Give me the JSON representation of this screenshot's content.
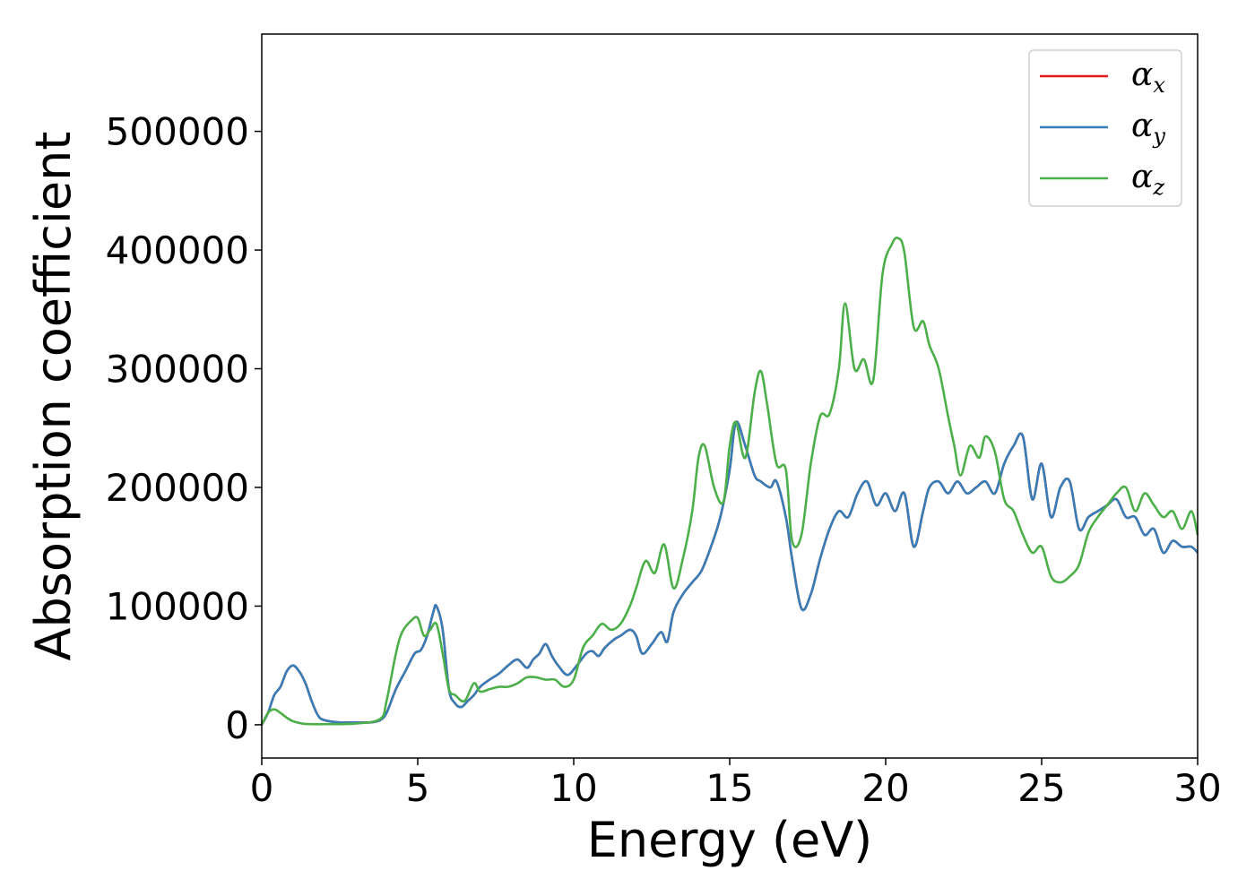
{
  "chart_data": {
    "type": "line",
    "xlabel": "Energy (eV)",
    "ylabel": "Absorption coefficient",
    "xlim": [
      0,
      30
    ],
    "ylim": [
      -28000,
      582000
    ],
    "xticks": [
      0,
      5,
      10,
      15,
      20,
      25,
      30
    ],
    "yticks": [
      0,
      100000,
      200000,
      300000,
      400000,
      500000
    ],
    "grid": false,
    "legend_position": "top-right",
    "series": [
      {
        "name": "α_x",
        "label_base": "α",
        "label_sub": "x",
        "color": "#e41a1c",
        "x": [
          0,
          0.2,
          0.4,
          0.6,
          0.8,
          1.0,
          1.2,
          1.4,
          1.6,
          1.8,
          2.0,
          2.5,
          3.0,
          3.5,
          3.8,
          4.0,
          4.3,
          4.6,
          4.9,
          5.1,
          5.3,
          5.5,
          5.6,
          5.8,
          6.0,
          6.2,
          6.4,
          6.6,
          6.8,
          7.0,
          7.3,
          7.6,
          7.9,
          8.2,
          8.5,
          8.7,
          8.9,
          9.1,
          9.3,
          9.5,
          9.8,
          10.1,
          10.4,
          10.6,
          10.8,
          11.0,
          11.3,
          11.5,
          11.8,
          12.0,
          12.2,
          12.5,
          12.8,
          13.0,
          13.2,
          13.5,
          13.8,
          14.1,
          14.4,
          14.7,
          15.0,
          15.2,
          15.5,
          15.8,
          16.0,
          16.3,
          16.5,
          16.8,
          17.0,
          17.3,
          17.6,
          17.9,
          18.2,
          18.5,
          18.8,
          19.1,
          19.4,
          19.7,
          20.0,
          20.3,
          20.6,
          20.9,
          21.2,
          21.4,
          21.7,
          22.0,
          22.3,
          22.6,
          22.9,
          23.2,
          23.5,
          23.8,
          24.1,
          24.4,
          24.7,
          25.0,
          25.3,
          25.6,
          25.9,
          26.2,
          26.5,
          26.8,
          27.1,
          27.4,
          27.7,
          28.0,
          28.3,
          28.6,
          28.9,
          29.2,
          29.5,
          29.8,
          30.0
        ],
        "y": [
          0,
          10000,
          25000,
          32000,
          45000,
          50000,
          45000,
          35000,
          20000,
          8000,
          4000,
          2000,
          2000,
          2000,
          4000,
          10000,
          30000,
          45000,
          60000,
          63000,
          75000,
          95000,
          100000,
          80000,
          30000,
          18000,
          15000,
          20000,
          25000,
          32000,
          38000,
          43000,
          50000,
          55000,
          48000,
          55000,
          60000,
          68000,
          58000,
          50000,
          42000,
          50000,
          60000,
          62000,
          58000,
          65000,
          72000,
          75000,
          80000,
          75000,
          60000,
          68000,
          78000,
          70000,
          95000,
          110000,
          120000,
          130000,
          150000,
          175000,
          215000,
          255000,
          235000,
          210000,
          205000,
          200000,
          205000,
          175000,
          140000,
          98000,
          110000,
          140000,
          165000,
          180000,
          175000,
          195000,
          205000,
          185000,
          195000,
          180000,
          195000,
          150000,
          180000,
          200000,
          205000,
          195000,
          205000,
          195000,
          200000,
          205000,
          195000,
          220000,
          235000,
          243000,
          190000,
          220000,
          175000,
          200000,
          205000,
          165000,
          175000,
          180000,
          185000,
          190000,
          175000,
          175000,
          160000,
          165000,
          145000,
          155000,
          150000,
          150000,
          145000
        ]
      },
      {
        "name": "α_y",
        "label_base": "α",
        "label_sub": "y",
        "color": "#377eb8",
        "x": [
          0,
          0.2,
          0.4,
          0.6,
          0.8,
          1.0,
          1.2,
          1.4,
          1.6,
          1.8,
          2.0,
          2.5,
          3.0,
          3.5,
          3.8,
          4.0,
          4.3,
          4.6,
          4.9,
          5.1,
          5.3,
          5.5,
          5.6,
          5.8,
          6.0,
          6.2,
          6.4,
          6.6,
          6.8,
          7.0,
          7.3,
          7.6,
          7.9,
          8.2,
          8.5,
          8.7,
          8.9,
          9.1,
          9.3,
          9.5,
          9.8,
          10.1,
          10.4,
          10.6,
          10.8,
          11.0,
          11.3,
          11.5,
          11.8,
          12.0,
          12.2,
          12.5,
          12.8,
          13.0,
          13.2,
          13.5,
          13.8,
          14.1,
          14.4,
          14.7,
          15.0,
          15.2,
          15.5,
          15.8,
          16.0,
          16.3,
          16.5,
          16.8,
          17.0,
          17.3,
          17.6,
          17.9,
          18.2,
          18.5,
          18.8,
          19.1,
          19.4,
          19.7,
          20.0,
          20.3,
          20.6,
          20.9,
          21.2,
          21.4,
          21.7,
          22.0,
          22.3,
          22.6,
          22.9,
          23.2,
          23.5,
          23.8,
          24.1,
          24.4,
          24.7,
          25.0,
          25.3,
          25.6,
          25.9,
          26.2,
          26.5,
          26.8,
          27.1,
          27.4,
          27.7,
          28.0,
          28.3,
          28.6,
          28.9,
          29.2,
          29.5,
          29.8,
          30.0
        ],
        "y": [
          0,
          10000,
          25000,
          32000,
          45000,
          50000,
          45000,
          35000,
          20000,
          8000,
          4000,
          2000,
          2000,
          2000,
          4000,
          10000,
          30000,
          45000,
          60000,
          63000,
          75000,
          95000,
          100000,
          80000,
          30000,
          18000,
          15000,
          20000,
          25000,
          32000,
          38000,
          43000,
          50000,
          55000,
          48000,
          55000,
          60000,
          68000,
          58000,
          50000,
          42000,
          50000,
          60000,
          62000,
          58000,
          65000,
          72000,
          75000,
          80000,
          75000,
          60000,
          68000,
          78000,
          70000,
          95000,
          110000,
          120000,
          130000,
          150000,
          175000,
          215000,
          255000,
          235000,
          210000,
          205000,
          200000,
          205000,
          175000,
          140000,
          98000,
          110000,
          140000,
          165000,
          180000,
          175000,
          195000,
          205000,
          185000,
          195000,
          180000,
          195000,
          150000,
          180000,
          200000,
          205000,
          195000,
          205000,
          195000,
          200000,
          205000,
          195000,
          220000,
          235000,
          243000,
          190000,
          220000,
          175000,
          200000,
          205000,
          165000,
          175000,
          180000,
          185000,
          190000,
          175000,
          175000,
          160000,
          165000,
          145000,
          155000,
          150000,
          150000,
          145000
        ]
      },
      {
        "name": "α_z",
        "label_base": "α",
        "label_sub": "z",
        "color": "#4daf4a",
        "x": [
          0,
          0.2,
          0.4,
          0.6,
          0.8,
          1.0,
          1.3,
          1.6,
          2.0,
          3.0,
          3.8,
          4.0,
          4.3,
          4.5,
          4.8,
          5.0,
          5.2,
          5.4,
          5.6,
          5.8,
          6.0,
          6.2,
          6.5,
          6.8,
          7.0,
          7.3,
          7.6,
          7.9,
          8.2,
          8.5,
          8.8,
          9.1,
          9.4,
          9.7,
          10.0,
          10.3,
          10.6,
          10.9,
          11.2,
          11.5,
          11.8,
          12.0,
          12.3,
          12.6,
          12.9,
          13.2,
          13.5,
          13.8,
          14.0,
          14.2,
          14.5,
          14.8,
          15.0,
          15.2,
          15.5,
          15.8,
          16.0,
          16.2,
          16.5,
          16.8,
          17.0,
          17.3,
          17.6,
          17.9,
          18.2,
          18.5,
          18.7,
          19.0,
          19.3,
          19.6,
          19.9,
          20.2,
          20.4,
          20.6,
          20.9,
          21.2,
          21.4,
          21.7,
          22.0,
          22.2,
          22.4,
          22.7,
          23.0,
          23.2,
          23.5,
          23.8,
          24.1,
          24.4,
          24.7,
          25.0,
          25.3,
          25.6,
          25.9,
          26.2,
          26.5,
          26.8,
          27.1,
          27.4,
          27.7,
          28.0,
          28.3,
          28.6,
          28.9,
          29.2,
          29.5,
          29.8,
          30.0
        ],
        "y": [
          0,
          10000,
          13000,
          10000,
          6000,
          3000,
          1000,
          500,
          500,
          1000,
          5000,
          20000,
          60000,
          78000,
          88000,
          90000,
          75000,
          80000,
          85000,
          60000,
          30000,
          25000,
          20000,
          35000,
          28000,
          30000,
          32000,
          32000,
          35000,
          40000,
          40000,
          38000,
          38000,
          32000,
          38000,
          65000,
          75000,
          85000,
          80000,
          85000,
          100000,
          115000,
          138000,
          128000,
          152000,
          115000,
          140000,
          180000,
          225000,
          235000,
          200000,
          188000,
          235000,
          255000,
          225000,
          280000,
          298000,
          270000,
          220000,
          215000,
          155000,
          160000,
          220000,
          260000,
          262000,
          300000,
          355000,
          300000,
          308000,
          290000,
          380000,
          405000,
          410000,
          398000,
          335000,
          340000,
          320000,
          300000,
          260000,
          235000,
          210000,
          235000,
          225000,
          243000,
          230000,
          190000,
          180000,
          160000,
          145000,
          150000,
          125000,
          120000,
          125000,
          135000,
          162000,
          175000,
          185000,
          195000,
          200000,
          180000,
          195000,
          185000,
          175000,
          180000,
          165000,
          180000,
          160000
        ]
      }
    ]
  }
}
